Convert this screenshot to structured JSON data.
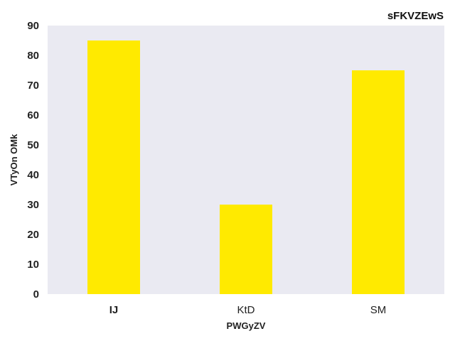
{
  "chart_data": {
    "type": "bar",
    "title": "sFKVZEwS",
    "xlabel": "PWGyZV",
    "ylabel": "VTyOn OMk",
    "categories": [
      "IJ",
      "KtD",
      "SM"
    ],
    "values": [
      85,
      30,
      75
    ],
    "ylim": [
      0,
      90
    ],
    "yticks": [
      "0",
      "10",
      "20",
      "30",
      "40",
      "50",
      "60",
      "70",
      "80",
      "90"
    ],
    "grid": false,
    "bar_color": "#FFEA00",
    "plot_background": "#EAEAF2"
  }
}
